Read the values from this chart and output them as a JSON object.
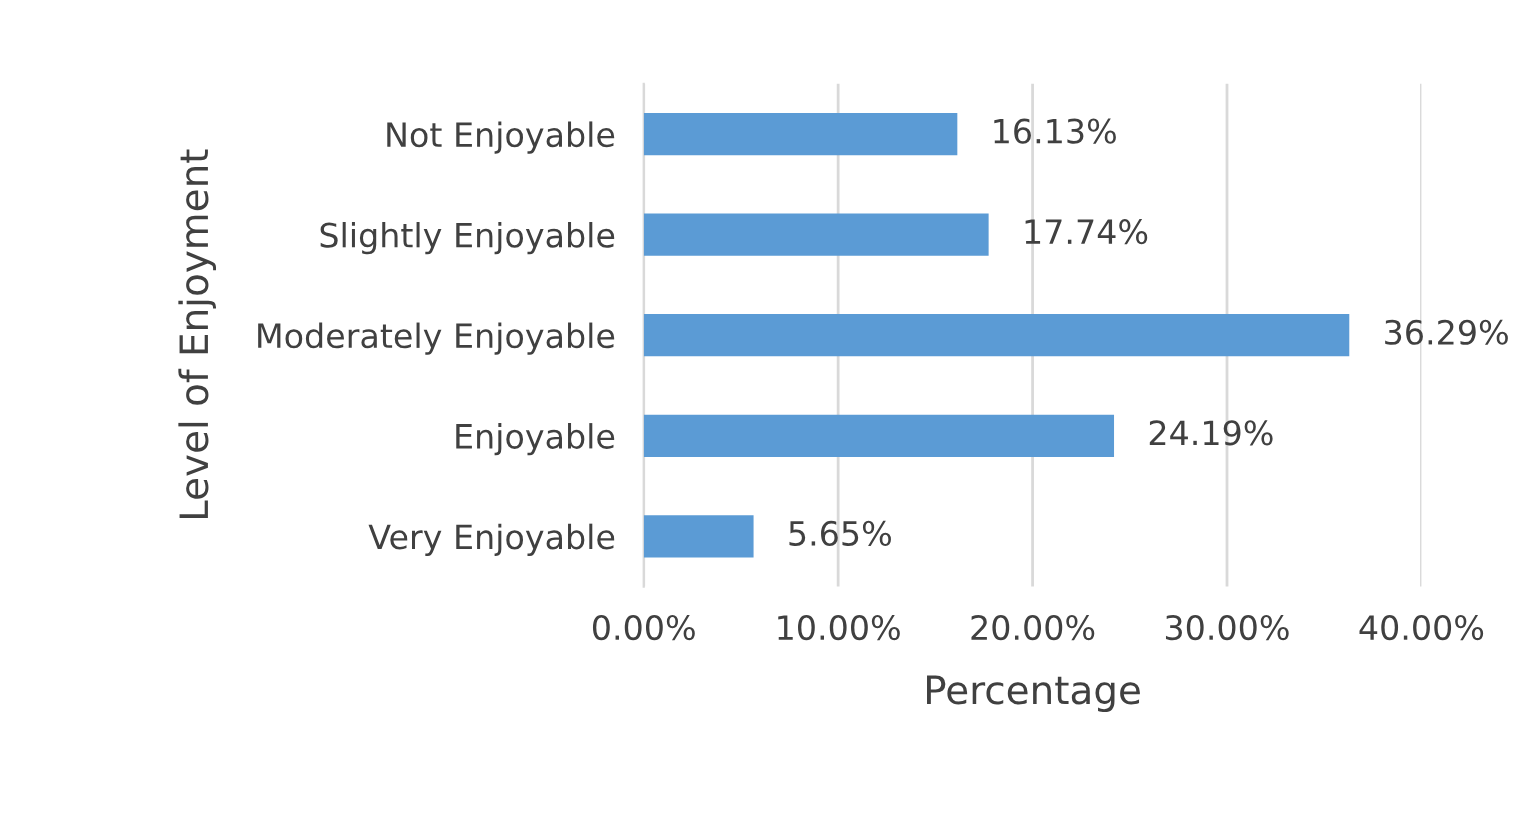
{
  "chart_data": {
    "type": "bar",
    "orientation": "horizontal",
    "xlabel": "Percentage",
    "ylabel": "Level of Enjoyment",
    "categories": [
      "Not Enjoyable",
      "Slightly Enjoyable",
      "Moderately Enjoyable",
      "Enjoyable",
      "Very Enjoyable"
    ],
    "values": [
      16.13,
      17.74,
      36.29,
      24.19,
      5.65
    ],
    "value_labels": [
      "16.13%",
      "17.74%",
      "36.29%",
      "24.19%",
      "5.65%"
    ],
    "color": "#5b9bd5",
    "xlim": [
      0,
      40
    ],
    "xticks": [
      {
        "value": 0,
        "label": "0.00%"
      },
      {
        "value": 10,
        "label": "10.00%"
      },
      {
        "value": 20,
        "label": "20.00%"
      },
      {
        "value": 30,
        "label": "30.00%"
      },
      {
        "value": 40,
        "label": "40.00%"
      }
    ],
    "grid": "x"
  }
}
